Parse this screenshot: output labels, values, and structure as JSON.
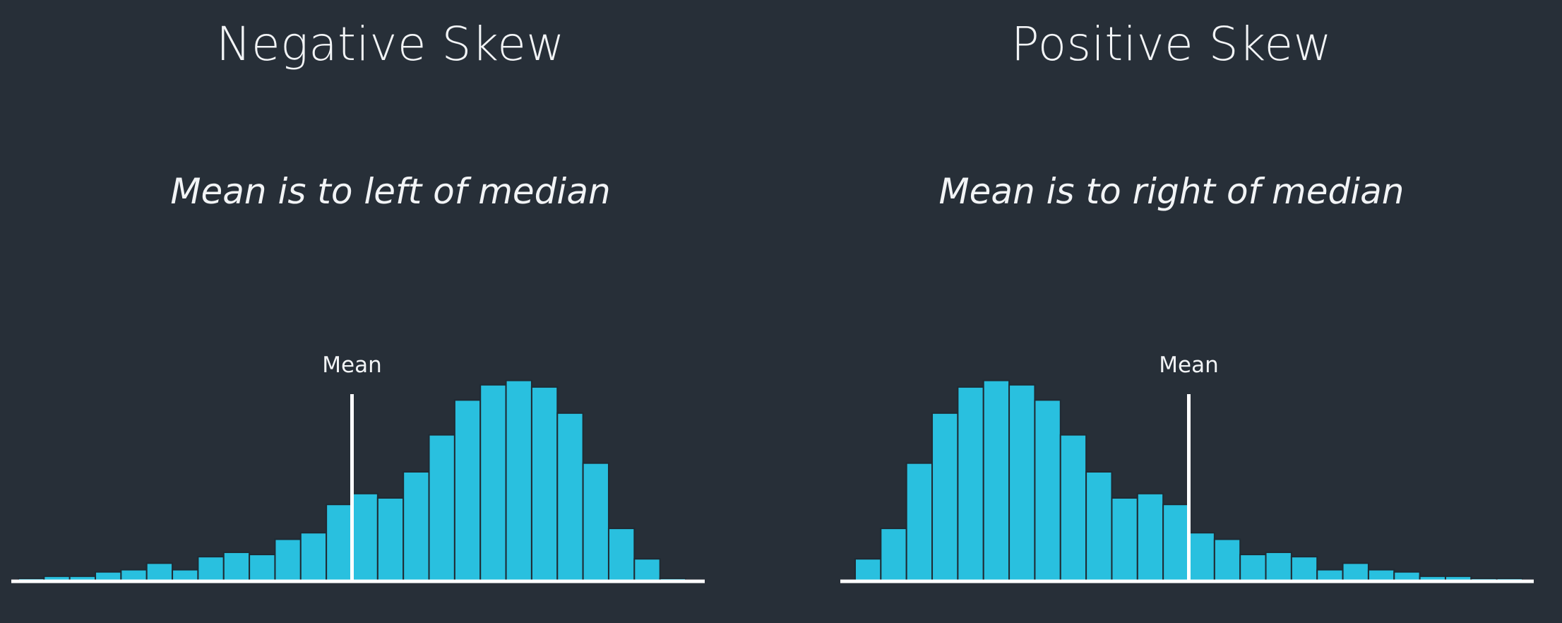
{
  "colors": {
    "background": "#272f38",
    "bar": "#29c0df",
    "bar_edge": "#1f2a33",
    "axis": "#ffffff",
    "mean_line": "#ffffff"
  },
  "chart_data": [
    {
      "type": "bar",
      "title": "Negative Skew",
      "subtitle": "Mean is to left of median",
      "bin_count": 26,
      "values": [
        1,
        2,
        2,
        4,
        5,
        8,
        5,
        11,
        13,
        12,
        19,
        22,
        35,
        40,
        38,
        50,
        67,
        83,
        90,
        92,
        89,
        77,
        54,
        24,
        10,
        1
      ],
      "ylim": [
        0,
        100
      ],
      "mean_bin": 13,
      "mean_label": "Mean",
      "grid": false
    },
    {
      "type": "bar",
      "title": "Positive Skew",
      "subtitle": "Mean is to right of median",
      "bin_count": 26,
      "values": [
        10,
        24,
        54,
        77,
        89,
        92,
        90,
        83,
        67,
        50,
        38,
        40,
        35,
        22,
        19,
        12,
        13,
        11,
        5,
        8,
        5,
        4,
        2,
        2,
        1,
        1
      ],
      "ylim": [
        0,
        100
      ],
      "mean_bin": 13,
      "mean_label": "Mean",
      "grid": false
    }
  ]
}
